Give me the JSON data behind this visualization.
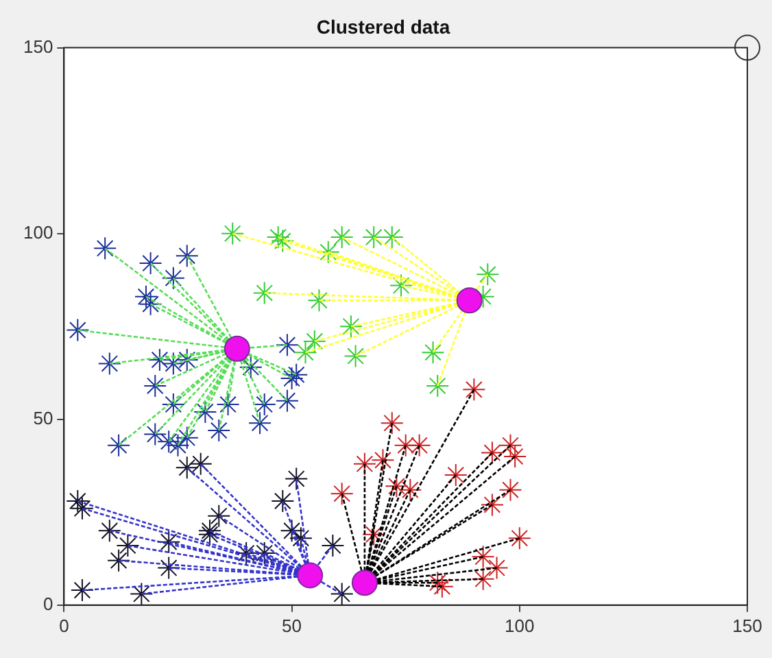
{
  "chart_data": {
    "type": "scatter",
    "title": "Clustered data",
    "xlim": [
      0,
      150
    ],
    "ylim": [
      0,
      150
    ],
    "xticks": [
      0,
      50,
      100,
      150
    ],
    "yticks": [
      0,
      50,
      100,
      150
    ],
    "grid": false,
    "legend": false,
    "line_style": "dashed",
    "series": [
      {
        "type": "line",
        "color": "#55dd55",
        "x": [
          9,
          38
        ],
        "values": [
          96,
          69
        ]
      },
      {
        "type": "line",
        "color": "#55dd55",
        "x": [
          19,
          38
        ],
        "values": [
          92,
          69
        ]
      },
      {
        "type": "line",
        "color": "#55dd55",
        "x": [
          27,
          38
        ],
        "values": [
          94,
          69
        ]
      },
      {
        "type": "line",
        "color": "#55dd55",
        "x": [
          24,
          38
        ],
        "values": [
          88,
          69
        ]
      },
      {
        "type": "line",
        "color": "#55dd55",
        "x": [
          18,
          38
        ],
        "values": [
          83,
          69
        ]
      },
      {
        "type": "line",
        "color": "#55dd55",
        "x": [
          19,
          38
        ],
        "values": [
          81,
          69
        ]
      },
      {
        "type": "line",
        "color": "#55dd55",
        "x": [
          3,
          38
        ],
        "values": [
          74,
          69
        ]
      },
      {
        "type": "line",
        "color": "#55dd55",
        "x": [
          10,
          38
        ],
        "values": [
          65,
          69
        ]
      },
      {
        "type": "line",
        "color": "#55dd55",
        "x": [
          21,
          38
        ],
        "values": [
          66,
          69
        ]
      },
      {
        "type": "line",
        "color": "#55dd55",
        "x": [
          24,
          38
        ],
        "values": [
          65,
          69
        ]
      },
      {
        "type": "line",
        "color": "#55dd55",
        "x": [
          27,
          38
        ],
        "values": [
          66,
          69
        ]
      },
      {
        "type": "line",
        "color": "#55dd55",
        "x": [
          38,
          49
        ],
        "values": [
          69,
          70
        ]
      },
      {
        "type": "line",
        "color": "#55dd55",
        "x": [
          38,
          41
        ],
        "values": [
          69,
          64
        ]
      },
      {
        "type": "line",
        "color": "#55dd55",
        "x": [
          38,
          50
        ],
        "values": [
          69,
          61
        ]
      },
      {
        "type": "line",
        "color": "#55dd55",
        "x": [
          38,
          51
        ],
        "values": [
          69,
          62
        ]
      },
      {
        "type": "line",
        "color": "#55dd55",
        "x": [
          20,
          38
        ],
        "values": [
          59,
          69
        ]
      },
      {
        "type": "line",
        "color": "#55dd55",
        "x": [
          24,
          38
        ],
        "values": [
          54,
          69
        ]
      },
      {
        "type": "line",
        "color": "#55dd55",
        "x": [
          38,
          49
        ],
        "values": [
          69,
          55
        ]
      },
      {
        "type": "line",
        "color": "#55dd55",
        "x": [
          31,
          38
        ],
        "values": [
          52,
          69
        ]
      },
      {
        "type": "line",
        "color": "#55dd55",
        "x": [
          36,
          38
        ],
        "values": [
          54,
          69
        ]
      },
      {
        "type": "line",
        "color": "#55dd55",
        "x": [
          38,
          44
        ],
        "values": [
          69,
          54
        ]
      },
      {
        "type": "line",
        "color": "#55dd55",
        "x": [
          38,
          43
        ],
        "values": [
          69,
          49
        ]
      },
      {
        "type": "line",
        "color": "#55dd55",
        "x": [
          34,
          38
        ],
        "values": [
          47,
          69
        ]
      },
      {
        "type": "line",
        "color": "#55dd55",
        "x": [
          20,
          38
        ],
        "values": [
          46,
          69
        ]
      },
      {
        "type": "line",
        "color": "#55dd55",
        "x": [
          23,
          38
        ],
        "values": [
          44,
          69
        ]
      },
      {
        "type": "line",
        "color": "#55dd55",
        "x": [
          27,
          38
        ],
        "values": [
          45,
          69
        ]
      },
      {
        "type": "line",
        "color": "#55dd55",
        "x": [
          12,
          38
        ],
        "values": [
          43,
          69
        ]
      },
      {
        "type": "line",
        "color": "#55dd55",
        "x": [
          25,
          38
        ],
        "values": [
          43,
          69
        ]
      },
      {
        "type": "line",
        "color": "#ffff33",
        "x": [
          37,
          89
        ],
        "values": [
          100,
          82
        ]
      },
      {
        "type": "line",
        "color": "#ffff33",
        "x": [
          47,
          89
        ],
        "values": [
          99,
          82
        ]
      },
      {
        "type": "line",
        "color": "#ffff33",
        "x": [
          48,
          89
        ],
        "values": [
          98,
          82
        ]
      },
      {
        "type": "line",
        "color": "#ffff33",
        "x": [
          58,
          89
        ],
        "values": [
          95,
          82
        ]
      },
      {
        "type": "line",
        "color": "#ffff33",
        "x": [
          61,
          89
        ],
        "values": [
          99,
          82
        ]
      },
      {
        "type": "line",
        "color": "#ffff33",
        "x": [
          68,
          89
        ],
        "values": [
          99,
          82
        ]
      },
      {
        "type": "line",
        "color": "#ffff33",
        "x": [
          72,
          89
        ],
        "values": [
          99,
          82
        ]
      },
      {
        "type": "line",
        "color": "#ffff33",
        "x": [
          74,
          89
        ],
        "values": [
          86,
          82
        ]
      },
      {
        "type": "line",
        "color": "#ffff33",
        "x": [
          89,
          93
        ],
        "values": [
          82,
          89
        ]
      },
      {
        "type": "line",
        "color": "#ffff33",
        "x": [
          44,
          89
        ],
        "values": [
          84,
          82
        ]
      },
      {
        "type": "line",
        "color": "#ffff33",
        "x": [
          56,
          89
        ],
        "values": [
          82,
          82
        ]
      },
      {
        "type": "line",
        "color": "#ffff33",
        "x": [
          63,
          89
        ],
        "values": [
          75,
          82
        ]
      },
      {
        "type": "line",
        "color": "#ffff33",
        "x": [
          55,
          89
        ],
        "values": [
          71,
          82
        ]
      },
      {
        "type": "line",
        "color": "#ffff33",
        "x": [
          64,
          89
        ],
        "values": [
          67,
          82
        ]
      },
      {
        "type": "line",
        "color": "#ffff33",
        "x": [
          53,
          89
        ],
        "values": [
          68,
          82
        ]
      },
      {
        "type": "line",
        "color": "#ffff33",
        "x": [
          81,
          89
        ],
        "values": [
          68,
          82
        ]
      },
      {
        "type": "line",
        "color": "#ffff33",
        "x": [
          82,
          89
        ],
        "values": [
          59,
          82
        ]
      },
      {
        "type": "line",
        "color": "#3333cc",
        "x": [
          3,
          54
        ],
        "values": [
          28,
          8
        ]
      },
      {
        "type": "line",
        "color": "#3333cc",
        "x": [
          4,
          54
        ],
        "values": [
          26,
          8
        ]
      },
      {
        "type": "line",
        "color": "#3333cc",
        "x": [
          10,
          54
        ],
        "values": [
          20,
          8
        ]
      },
      {
        "type": "line",
        "color": "#3333cc",
        "x": [
          14,
          54
        ],
        "values": [
          16,
          8
        ]
      },
      {
        "type": "line",
        "color": "#3333cc",
        "x": [
          12,
          54
        ],
        "values": [
          12,
          8
        ]
      },
      {
        "type": "line",
        "color": "#3333cc",
        "x": [
          4,
          54
        ],
        "values": [
          4,
          8
        ]
      },
      {
        "type": "line",
        "color": "#3333cc",
        "x": [
          17,
          54
        ],
        "values": [
          3,
          8
        ]
      },
      {
        "type": "line",
        "color": "#3333cc",
        "x": [
          23,
          54
        ],
        "values": [
          17,
          8
        ]
      },
      {
        "type": "line",
        "color": "#3333cc",
        "x": [
          23,
          54
        ],
        "values": [
          10,
          8
        ]
      },
      {
        "type": "line",
        "color": "#3333cc",
        "x": [
          27,
          54
        ],
        "values": [
          37,
          8
        ]
      },
      {
        "type": "line",
        "color": "#3333cc",
        "x": [
          30,
          54
        ],
        "values": [
          38,
          8
        ]
      },
      {
        "type": "line",
        "color": "#3333cc",
        "x": [
          34,
          54
        ],
        "values": [
          24,
          8
        ]
      },
      {
        "type": "line",
        "color": "#3333cc",
        "x": [
          32,
          54
        ],
        "values": [
          20,
          8
        ]
      },
      {
        "type": "line",
        "color": "#3333cc",
        "x": [
          32,
          54
        ],
        "values": [
          19,
          8
        ]
      },
      {
        "type": "line",
        "color": "#3333cc",
        "x": [
          40,
          54
        ],
        "values": [
          14,
          8
        ]
      },
      {
        "type": "line",
        "color": "#3333cc",
        "x": [
          44,
          54
        ],
        "values": [
          14,
          8
        ]
      },
      {
        "type": "line",
        "color": "#3333cc",
        "x": [
          48,
          54
        ],
        "values": [
          28,
          8
        ]
      },
      {
        "type": "line",
        "color": "#3333cc",
        "x": [
          51,
          54
        ],
        "values": [
          34,
          8
        ]
      },
      {
        "type": "line",
        "color": "#3333cc",
        "x": [
          50,
          54
        ],
        "values": [
          20,
          8
        ]
      },
      {
        "type": "line",
        "color": "#3333cc",
        "x": [
          52,
          54
        ],
        "values": [
          18,
          8
        ]
      },
      {
        "type": "line",
        "color": "#3333cc",
        "x": [
          54,
          59
        ],
        "values": [
          8,
          16
        ]
      },
      {
        "type": "line",
        "color": "#3333cc",
        "x": [
          54,
          61
        ],
        "values": [
          8,
          3
        ]
      },
      {
        "type": "line",
        "color": "#000000",
        "x": [
          66,
          90
        ],
        "values": [
          6,
          58
        ]
      },
      {
        "type": "line",
        "color": "#000000",
        "x": [
          66,
          72
        ],
        "values": [
          6,
          49
        ]
      },
      {
        "type": "line",
        "color": "#000000",
        "x": [
          66,
          75
        ],
        "values": [
          6,
          43
        ]
      },
      {
        "type": "line",
        "color": "#000000",
        "x": [
          66,
          78
        ],
        "values": [
          6,
          43
        ]
      },
      {
        "type": "line",
        "color": "#000000",
        "x": [
          66,
          66
        ],
        "values": [
          6,
          38
        ]
      },
      {
        "type": "line",
        "color": "#000000",
        "x": [
          66,
          70
        ],
        "values": [
          6,
          39
        ]
      },
      {
        "type": "line",
        "color": "#000000",
        "x": [
          66,
          73
        ],
        "values": [
          6,
          32
        ]
      },
      {
        "type": "line",
        "color": "#000000",
        "x": [
          66,
          76
        ],
        "values": [
          6,
          31
        ]
      },
      {
        "type": "line",
        "color": "#000000",
        "x": [
          61,
          66
        ],
        "values": [
          30,
          6
        ]
      },
      {
        "type": "line",
        "color": "#000000",
        "x": [
          66,
          86
        ],
        "values": [
          6,
          35
        ]
      },
      {
        "type": "line",
        "color": "#000000",
        "x": [
          66,
          94
        ],
        "values": [
          6,
          41
        ]
      },
      {
        "type": "line",
        "color": "#000000",
        "x": [
          66,
          98
        ],
        "values": [
          6,
          43
        ]
      },
      {
        "type": "line",
        "color": "#000000",
        "x": [
          66,
          99
        ],
        "values": [
          6,
          40
        ]
      },
      {
        "type": "line",
        "color": "#000000",
        "x": [
          66,
          98
        ],
        "values": [
          6,
          31
        ]
      },
      {
        "type": "line",
        "color": "#000000",
        "x": [
          66,
          94
        ],
        "values": [
          6,
          27
        ]
      },
      {
        "type": "line",
        "color": "#000000",
        "x": [
          66,
          100
        ],
        "values": [
          6,
          18
        ]
      },
      {
        "type": "line",
        "color": "#000000",
        "x": [
          66,
          68
        ],
        "values": [
          6,
          19
        ]
      },
      {
        "type": "line",
        "color": "#000000",
        "x": [
          66,
          92
        ],
        "values": [
          6,
          13
        ]
      },
      {
        "type": "line",
        "color": "#000000",
        "x": [
          66,
          95
        ],
        "values": [
          6,
          10
        ]
      },
      {
        "type": "line",
        "color": "#000000",
        "x": [
          66,
          92
        ],
        "values": [
          6,
          7
        ]
      },
      {
        "type": "line",
        "color": "#000000",
        "x": [
          66,
          82
        ],
        "values": [
          6,
          6
        ]
      },
      {
        "type": "line",
        "color": "#000000",
        "x": [
          66,
          83
        ],
        "values": [
          6,
          5
        ]
      },
      {
        "marker": "cross",
        "color": "#1a2d9a",
        "x": [
          9,
          19,
          27,
          24,
          18,
          19,
          3,
          10,
          21,
          24,
          27,
          49,
          41,
          50,
          51,
          20,
          24,
          49,
          31,
          36,
          44,
          43,
          34,
          20,
          23,
          27,
          12,
          25
        ],
        "values": [
          96,
          92,
          94,
          88,
          83,
          81,
          74,
          65,
          66,
          65,
          66,
          70,
          64,
          61,
          62,
          59,
          54,
          55,
          52,
          54,
          54,
          49,
          47,
          46,
          44,
          45,
          43,
          43
        ]
      },
      {
        "marker": "cross",
        "color": "#33cc33",
        "x": [
          37,
          47,
          48,
          58,
          61,
          68,
          72,
          74,
          93,
          92,
          44,
          56,
          63,
          55,
          64,
          53,
          81,
          82
        ],
        "values": [
          100,
          99,
          98,
          95,
          99,
          99,
          99,
          86,
          89,
          83,
          84,
          82,
          75,
          71,
          67,
          68,
          68,
          59
        ]
      },
      {
        "marker": "cross",
        "color": "#111122",
        "x": [
          3,
          4,
          10,
          14,
          12,
          4,
          17,
          23,
          23,
          27,
          30,
          34,
          32,
          32,
          40,
          44,
          48,
          51,
          50,
          52,
          59,
          61
        ],
        "values": [
          28,
          26,
          20,
          16,
          12,
          4,
          3,
          17,
          10,
          37,
          38,
          24,
          20,
          19,
          14,
          14,
          28,
          34,
          20,
          18,
          16,
          3
        ]
      },
      {
        "marker": "cross",
        "color": "#cc2222",
        "x": [
          90,
          72,
          75,
          78,
          66,
          70,
          73,
          76,
          61,
          86,
          94,
          98,
          99,
          98,
          94,
          100,
          68,
          92,
          95,
          92,
          82,
          83
        ],
        "values": [
          58,
          49,
          43,
          43,
          38,
          39,
          32,
          31,
          30,
          35,
          41,
          43,
          40,
          31,
          27,
          18,
          19,
          13,
          10,
          7,
          6,
          5
        ]
      },
      {
        "marker": "circle",
        "color": "#ee11ee",
        "x": [
          38,
          89,
          54,
          66
        ],
        "values": [
          69,
          82,
          8,
          6
        ]
      },
      {
        "marker": "circle",
        "x": [
          150
        ],
        "values": [
          150
        ]
      }
    ]
  }
}
